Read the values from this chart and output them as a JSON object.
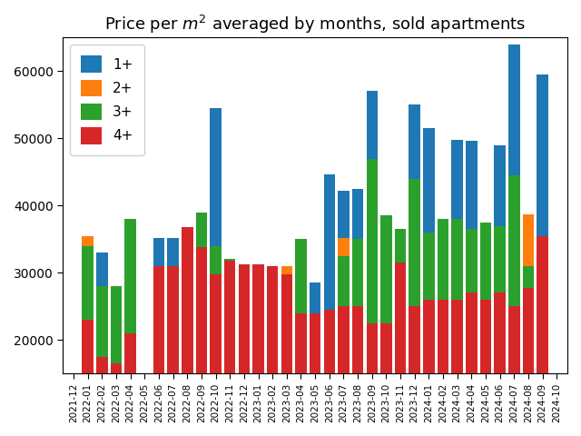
{
  "months": [
    "2021-12",
    "2022-01",
    "2022-02",
    "2022-03",
    "2022-04",
    "2022-05",
    "2022-06",
    "2022-07",
    "2022-08",
    "2022-09",
    "2022-10",
    "2022-11",
    "2022-12",
    "2023-01",
    "2023-02",
    "2023-03",
    "2023-04",
    "2023-05",
    "2023-06",
    "2023-07",
    "2023-08",
    "2023-09",
    "2023-10",
    "2023-11",
    "2023-12",
    "2024-01",
    "2024-02",
    "2024-03",
    "2024-04",
    "2024-05",
    "2024-06",
    "2024-07",
    "2024-08",
    "2024-09",
    "2024-10"
  ],
  "series": {
    "4+": [
      0,
      23000,
      17500,
      16500,
      21000,
      0,
      31000,
      31000,
      36800,
      33800,
      29800,
      31800,
      31200,
      31200,
      31000,
      29800,
      24000,
      24000,
      24500,
      25000,
      25000,
      22500,
      22500,
      31500,
      25000,
      26000,
      26000,
      26000,
      27000,
      26000,
      27000,
      25000,
      27800,
      35500,
      0
    ],
    "3+": [
      0,
      11000,
      10500,
      11500,
      17000,
      0,
      0,
      0,
      0,
      5200,
      4200,
      200,
      0,
      0,
      0,
      0,
      11000,
      0,
      0,
      7500,
      10000,
      24500,
      16000,
      5000,
      19000,
      10000,
      12000,
      12000,
      9500,
      11500,
      10000,
      19500,
      3200,
      0,
      0
    ],
    "2+": [
      0,
      1500,
      0,
      0,
      0,
      0,
      0,
      0,
      0,
      0,
      0,
      0,
      0,
      0,
      0,
      1200,
      0,
      0,
      0,
      2700,
      0,
      0,
      0,
      0,
      0,
      0,
      0,
      0,
      0,
      0,
      0,
      0,
      7700,
      0,
      0
    ],
    "1+": [
      0,
      0,
      5000,
      0,
      0,
      0,
      4200,
      4200,
      0,
      0,
      20500,
      0,
      0,
      0,
      0,
      0,
      0,
      4500,
      20200,
      7000,
      7500,
      10100,
      0,
      0,
      11000,
      15500,
      0,
      11800,
      13200,
      0,
      12000,
      19500,
      0,
      24000,
      0
    ]
  },
  "colors": {
    "4+": "#d62728",
    "3+": "#2ca02c",
    "2+": "#ff7f0e",
    "1+": "#1f77b4"
  },
  "legend_order": [
    "1+",
    "2+",
    "3+",
    "4+"
  ],
  "title": "Price per $m^2$ averaged by months, sold apartments",
  "ylim_min": 15000,
  "ylim_max": 65000,
  "yticks": [
    20000,
    30000,
    40000,
    50000,
    60000
  ]
}
